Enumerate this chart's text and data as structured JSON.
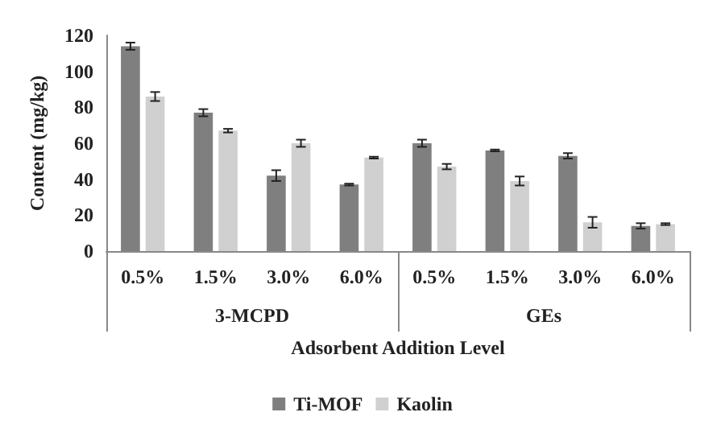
{
  "chart_data": {
    "type": "bar",
    "xlabel": "Adsorbent Addition Level",
    "ylabel": "Content (mg/kg)",
    "categories": [
      "0.5%",
      "1.5%",
      "3.0%",
      "6.0%",
      "0.5%",
      "1.5%",
      "3.0%",
      "6.0%"
    ],
    "annotations": [
      "3-MCPD",
      "GEs"
    ],
    "series": [
      {
        "name": "Ti-MOF",
        "color": "#7f7f7f",
        "values": [
          114,
          77,
          42,
          37,
          60,
          56,
          53,
          14
        ],
        "errors": [
          2,
          2,
          3,
          0.5,
          2,
          0.5,
          1.5,
          1.5
        ]
      },
      {
        "name": "Kaolin",
        "color": "#d0d0d0",
        "values": [
          86,
          67,
          60,
          52,
          47,
          39,
          16,
          15
        ],
        "errors": [
          2.5,
          1,
          2,
          0.5,
          1.5,
          2.5,
          3,
          0.5
        ]
      }
    ],
    "ylim": [
      0,
      120
    ],
    "yticks": [
      0,
      20,
      40,
      60,
      80,
      100,
      120
    ],
    "grid": false,
    "legend": "bottom"
  }
}
